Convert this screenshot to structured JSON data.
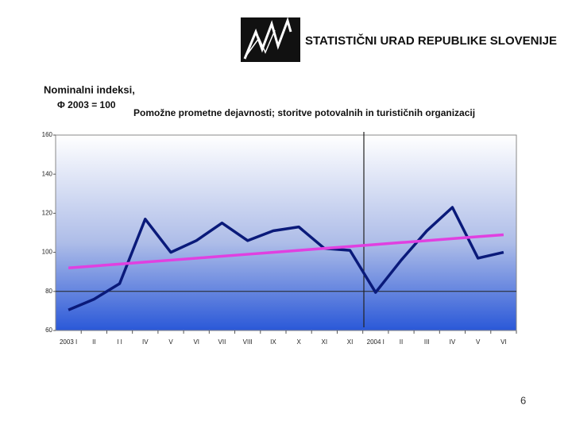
{
  "header": {
    "organization": "STATISTIČNI URAD REPUBLIKE SLOVENIJE"
  },
  "chart_data": {
    "type": "line",
    "y_label": [
      "Nominalni indeksi,",
      "Φ 2003 = 100"
    ],
    "title": "Pomožne prometne dejavnosti; storitve potovalnih in turističnih organizacij",
    "categories": [
      "2003 I",
      "II",
      "I I",
      "IV",
      "V",
      "VI",
      "VII",
      "VIII",
      "IX",
      "X",
      "XI",
      "XI",
      "2004 I",
      "II",
      "III",
      "IV",
      "V",
      "VI"
    ],
    "series": [
      {
        "color": "#0a1a7a",
        "values": [
          70.5,
          76,
          84,
          117,
          100,
          106,
          115,
          106,
          111,
          113,
          102,
          101,
          79.5,
          96,
          111,
          123,
          97,
          100
        ]
      },
      {
        "color": "#e040e0",
        "values": [
          92,
          93,
          94,
          95,
          96,
          97,
          98,
          99,
          100,
          101,
          102,
          103,
          104,
          105,
          106,
          107,
          108,
          109
        ]
      }
    ],
    "ylim": [
      60,
      160
    ],
    "yticks": [
      60,
      80,
      100,
      120,
      140,
      160
    ],
    "hline": 80
  },
  "footer": {
    "page_number": "6"
  }
}
